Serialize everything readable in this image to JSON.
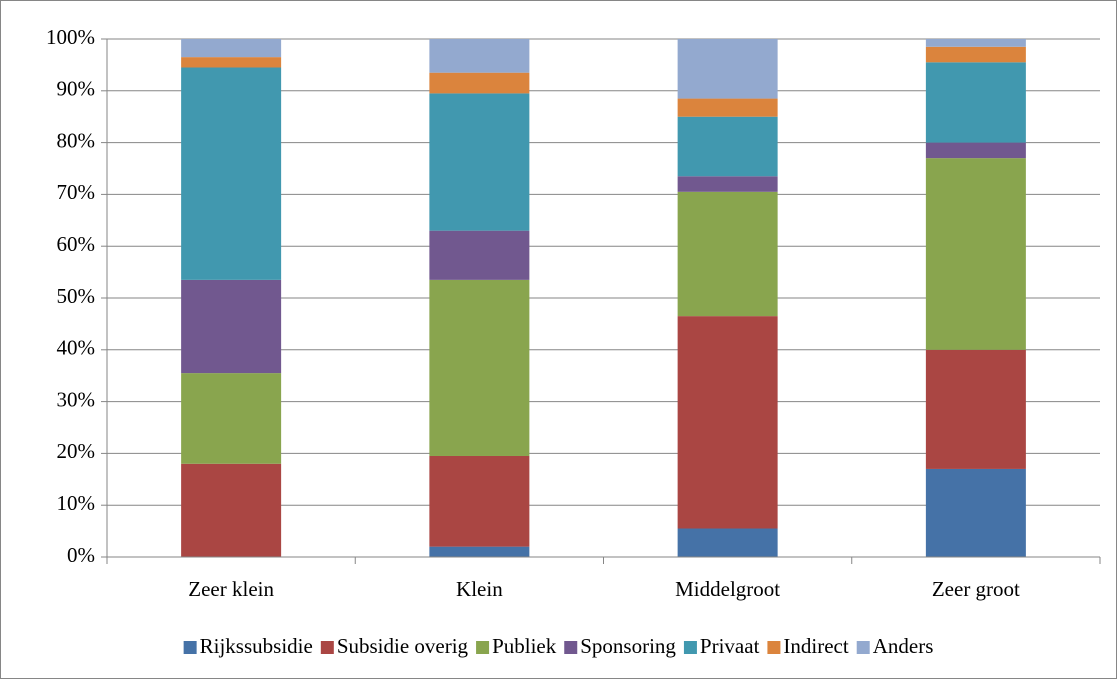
{
  "chart_data": {
    "type": "stacked_bar",
    "categories": [
      "Zeer klein",
      "Klein",
      "Middelgroot",
      "Zeer groot"
    ],
    "series": [
      {
        "name": "Rijkssubsidie",
        "color": "#4572a7",
        "values": [
          0,
          2,
          5.5,
          17
        ]
      },
      {
        "name": "Subsidie overig",
        "color": "#aa4643",
        "values": [
          18,
          17.5,
          41,
          23
        ]
      },
      {
        "name": "Publiek",
        "color": "#89a54e",
        "values": [
          17.5,
          34,
          24,
          37
        ]
      },
      {
        "name": "Sponsoring",
        "color": "#71588f",
        "values": [
          18,
          9.5,
          3,
          3
        ]
      },
      {
        "name": "Privaat",
        "color": "#4198af",
        "values": [
          41,
          26.5,
          11.5,
          15.5
        ]
      },
      {
        "name": "Indirect",
        "color": "#db843d",
        "values": [
          2,
          4,
          3.5,
          3
        ]
      },
      {
        "name": "Anders",
        "color": "#93a9cf",
        "values": [
          3.5,
          6.5,
          11.5,
          1.5
        ]
      }
    ],
    "ylim": [
      0,
      100
    ],
    "yticks": [
      {
        "value": 0,
        "label": "0%"
      },
      {
        "value": 10,
        "label": "10%"
      },
      {
        "value": 20,
        "label": "20%"
      },
      {
        "value": 30,
        "label": "30%"
      },
      {
        "value": 40,
        "label": "40%"
      },
      {
        "value": 50,
        "label": "50%"
      },
      {
        "value": 60,
        "label": "60%"
      },
      {
        "value": 70,
        "label": "70%"
      },
      {
        "value": 80,
        "label": "80%"
      },
      {
        "value": 90,
        "label": "90%"
      },
      {
        "value": 100,
        "label": "100%"
      }
    ],
    "grid": true,
    "legend": "bottom"
  }
}
